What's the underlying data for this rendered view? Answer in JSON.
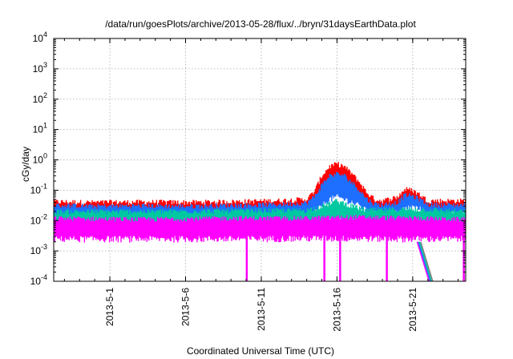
{
  "chart_data": {
    "type": "line",
    "title": "/data/run/goesPlots/archive/2013-05-28/flux/../bryn/31daysEarthData.plot",
    "xlabel": "Coordinated Universal Time (UTC)",
    "ylabel": "cGy/day",
    "x_range": [
      "2013-04-27T07:00",
      "2013-05-24T12:00"
    ],
    "x_ticks": [
      {
        "label": "2013-5-1",
        "date": "2013-05-01"
      },
      {
        "label": "2013-5-6",
        "date": "2013-05-06"
      },
      {
        "label": "2013-5-11",
        "date": "2013-05-11"
      },
      {
        "label": "2013-5-16",
        "date": "2013-05-16"
      },
      {
        "label": "2013-5-21",
        "date": "2013-05-21"
      }
    ],
    "y_scale": "log",
    "ylim": [
      0.0001,
      10000
    ],
    "y_ticks": [
      {
        "base": "10",
        "exp": "-4",
        "value": 0.0001
      },
      {
        "base": "10",
        "exp": "-3",
        "value": 0.001
      },
      {
        "base": "10",
        "exp": "-2",
        "value": 0.01
      },
      {
        "base": "10",
        "exp": "-1",
        "value": 0.1
      },
      {
        "base": "10",
        "exp": "0",
        "value": 1
      },
      {
        "base": "10",
        "exp": "1",
        "value": 10
      },
      {
        "base": "10",
        "exp": "2",
        "value": 100
      },
      {
        "base": "10",
        "exp": "3",
        "value": 1000
      },
      {
        "base": "10",
        "exp": "4",
        "value": 10000
      }
    ],
    "grid": true,
    "legend": "none",
    "series": [
      {
        "color": "#ff0000",
        "band": true,
        "x": [
          "2013-04-27T07:00",
          "2013-04-30",
          "2013-05-03",
          "2013-05-06",
          "2013-05-09",
          "2013-05-12",
          "2013-05-13",
          "2013-05-14",
          "2013-05-14T12:00",
          "2013-05-15",
          "2013-05-15T12:00",
          "2013-05-16",
          "2013-05-16T12:00",
          "2013-05-17",
          "2013-05-17T12:00",
          "2013-05-18",
          "2013-05-18T12:00",
          "2013-05-19",
          "2013-05-20",
          "2013-05-20T12:00",
          "2013-05-21",
          "2013-05-21T12:00",
          "2013-05-22",
          "2013-05-23",
          "2013-05-24T12:00"
        ],
        "lower": [
          0.016,
          0.017,
          0.016,
          0.017,
          0.017,
          0.018,
          0.018,
          0.019,
          0.025,
          0.06,
          0.18,
          0.2,
          0.16,
          0.1,
          0.07,
          0.035,
          0.025,
          0.022,
          0.025,
          0.045,
          0.05,
          0.04,
          0.025,
          0.022,
          0.022
        ],
        "upper": [
          0.042,
          0.04,
          0.041,
          0.04,
          0.042,
          0.045,
          0.048,
          0.05,
          0.09,
          0.3,
          0.6,
          0.75,
          0.6,
          0.35,
          0.18,
          0.08,
          0.05,
          0.045,
          0.06,
          0.11,
          0.1,
          0.07,
          0.045,
          0.045,
          0.045
        ]
      },
      {
        "color": "#1e6fff",
        "band": true,
        "x": [
          "2013-04-27T07:00",
          "2013-04-30",
          "2013-05-03",
          "2013-05-06",
          "2013-05-09",
          "2013-05-12",
          "2013-05-13",
          "2013-05-14",
          "2013-05-14T12:00",
          "2013-05-15",
          "2013-05-15T12:00",
          "2013-05-16",
          "2013-05-16T12:00",
          "2013-05-17",
          "2013-05-17T12:00",
          "2013-05-18",
          "2013-05-18T12:00",
          "2013-05-19",
          "2013-05-20",
          "2013-05-20T12:00",
          "2013-05-21",
          "2013-05-21T12:00",
          "2013-05-22",
          "2013-05-23",
          "2013-05-24T12:00"
        ],
        "lower": [
          0.012,
          0.013,
          0.012,
          0.013,
          0.013,
          0.014,
          0.014,
          0.015,
          0.018,
          0.03,
          0.05,
          0.06,
          0.05,
          0.04,
          0.03,
          0.02,
          0.017,
          0.016,
          0.018,
          0.025,
          0.028,
          0.024,
          0.017,
          0.016,
          0.016
        ],
        "upper": [
          0.032,
          0.03,
          0.031,
          0.03,
          0.032,
          0.034,
          0.036,
          0.038,
          0.06,
          0.15,
          0.3,
          0.35,
          0.3,
          0.18,
          0.1,
          0.05,
          0.035,
          0.033,
          0.04,
          0.07,
          0.065,
          0.05,
          0.034,
          0.033,
          0.033
        ]
      },
      {
        "color": "#00c8a0",
        "band": true,
        "x": [
          "2013-04-27T07:00",
          "2013-05-03",
          "2013-05-09",
          "2013-05-14",
          "2013-05-15",
          "2013-05-16",
          "2013-05-17",
          "2013-05-18",
          "2013-05-21",
          "2013-05-24T12:00"
        ],
        "lower": [
          0.007,
          0.007,
          0.007,
          0.008,
          0.009,
          0.01,
          0.009,
          0.008,
          0.008,
          0.007
        ],
        "upper": [
          0.02,
          0.02,
          0.021,
          0.022,
          0.03,
          0.045,
          0.03,
          0.022,
          0.024,
          0.02
        ]
      },
      {
        "color": "#ff00ff",
        "band": true,
        "x": [
          "2013-04-27T07:00",
          "2013-05-03",
          "2013-05-09",
          "2013-05-14",
          "2013-05-17",
          "2013-05-21",
          "2013-05-24T12:00"
        ],
        "lower": [
          0.0025,
          0.0025,
          0.0025,
          0.0026,
          0.0026,
          0.0025,
          0.0025
        ],
        "upper": [
          0.012,
          0.011,
          0.012,
          0.012,
          0.013,
          0.012,
          0.011
        ]
      }
    ],
    "dropouts": [
      {
        "date": "2013-05-10T01:00",
        "min": 0.0001,
        "max": 0.003,
        "color": "#ff00ff"
      },
      {
        "date": "2013-05-15T04:00",
        "min": 0.0001,
        "max": 0.003,
        "color": "#ff00ff"
      },
      {
        "date": "2013-05-16T05:00",
        "min": 0.0001,
        "max": 0.003,
        "color": "#ff00ff"
      },
      {
        "date": "2013-05-19T07:00",
        "min": 0.0001,
        "max": 0.003,
        "color": "#ff00ff"
      },
      {
        "date": "2013-05-24T09:00",
        "min": 0.0001,
        "max": 0.003,
        "color": "#ff00ff"
      }
    ],
    "falloff": {
      "x": [
        "2013-05-21T07:00",
        "2013-05-22T02:00"
      ],
      "y": [
        0.002,
        0.0001
      ],
      "colors": [
        "#ff00ff",
        "#1e6fff",
        "#00c8a0",
        "#808080"
      ]
    }
  }
}
